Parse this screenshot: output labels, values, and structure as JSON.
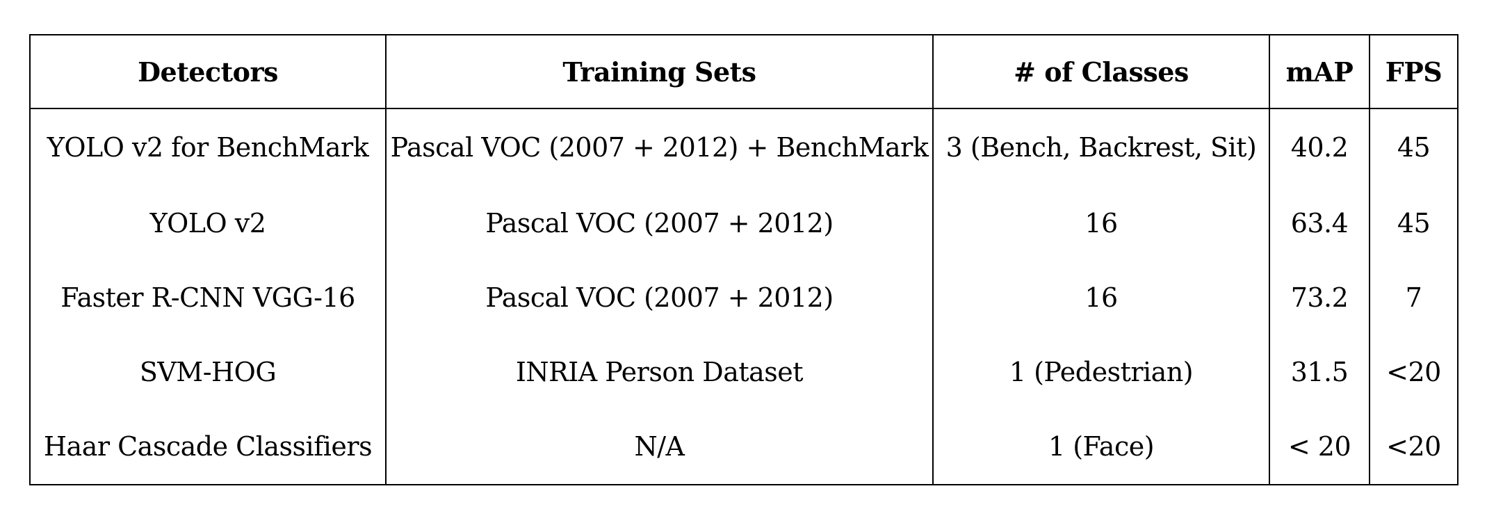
{
  "table": {
    "headers": [
      "Detectors",
      "Training Sets",
      "# of Classes",
      "mAP",
      "FPS"
    ],
    "rows": [
      [
        "YOLO v2 for BenchMark",
        "Pascal VOC (2007 + 2012) + BenchMark",
        "3 (Bench, Backrest, Sit)",
        "40.2",
        "45"
      ],
      [
        "YOLO v2",
        "Pascal VOC (2007 + 2012)",
        "16",
        "63.4",
        "45"
      ],
      [
        "Faster R-CNN VGG-16",
        "Pascal VOC (2007 + 2012)",
        "16",
        "73.2",
        "7"
      ],
      [
        "SVM-HOG",
        "INRIA Person Dataset",
        "1 (Pedestrian)",
        "31.5",
        "<20"
      ],
      [
        "Haar Cascade Classifiers",
        "N/A",
        "1 (Face)",
        "< 20",
        "<20"
      ]
    ]
  }
}
